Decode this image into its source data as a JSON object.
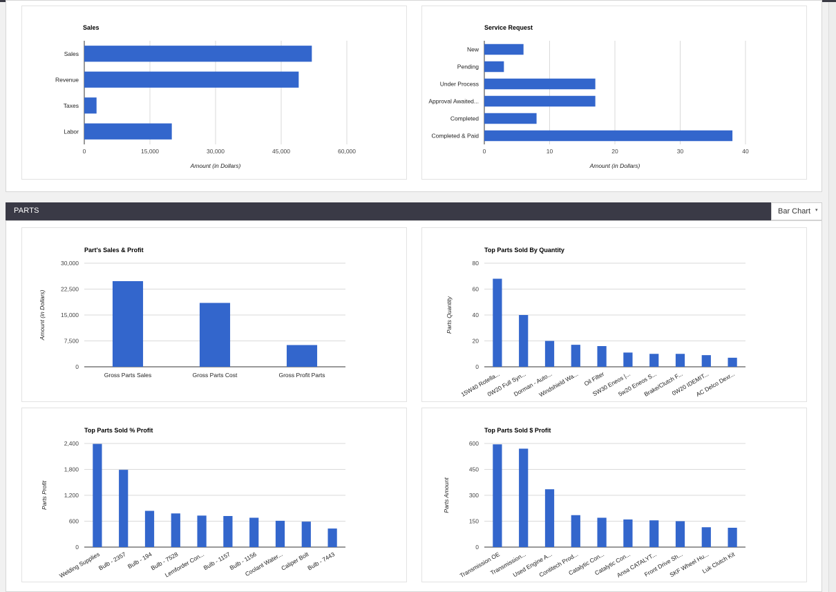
{
  "header": {
    "title": "PARTS",
    "view_select": "Bar Chart",
    "caret_icon": "▾"
  },
  "chart_data": [
    {
      "id": "sales",
      "type": "bar",
      "orientation": "horizontal",
      "title": "Sales",
      "categories": [
        "Sales",
        "Revenue",
        "Taxes",
        "Labor"
      ],
      "values": [
        52000,
        49000,
        2800,
        20000
      ],
      "xlabel": "Amount (in Dollars)",
      "ylabel": "",
      "ticks": [
        0,
        15000,
        30000,
        45000,
        60000
      ],
      "tick_labels": [
        "0",
        "15,000",
        "30,000",
        "45,000",
        "60,000"
      ],
      "xlim": [
        0,
        60000
      ],
      "grid": true,
      "color": "#3366cc"
    },
    {
      "id": "service-request",
      "type": "bar",
      "orientation": "horizontal",
      "title": "Service Request",
      "categories": [
        "New",
        "Pending",
        "Under Process",
        "Approval Awaited...",
        "Completed",
        "Completed & Paid"
      ],
      "values": [
        6,
        3,
        17,
        17,
        8,
        38
      ],
      "xlabel": "Amount (in Dollars)",
      "ylabel": "",
      "ticks": [
        0,
        10,
        20,
        30,
        40
      ],
      "tick_labels": [
        "0",
        "10",
        "20",
        "30",
        "40"
      ],
      "xlim": [
        0,
        40
      ],
      "grid": true,
      "color": "#3366cc"
    },
    {
      "id": "parts-sales-profit",
      "type": "bar",
      "title": "Part's Sales & Profit",
      "categories": [
        "Gross Parts Sales",
        "Gross Parts Cost",
        "Gross Profit Parts"
      ],
      "values": [
        24800,
        18500,
        6300
      ],
      "xlabel": "",
      "ylabel": "Amount (in Dollars)",
      "ticks": [
        0,
        7500,
        15000,
        22500,
        30000
      ],
      "tick_labels": [
        "0",
        "7,500",
        "15,000",
        "22,500",
        "30,000"
      ],
      "ylim": [
        0,
        30000
      ],
      "grid": true,
      "color": "#3366cc"
    },
    {
      "id": "top-parts-quantity",
      "type": "bar",
      "title": "Top Parts Sold By Quantity",
      "categories": [
        "15W40 Rotella...",
        "0W20 Full Syn...",
        "Dorman - Auto...",
        "Windshield Wa...",
        "Oil Filter",
        "SW30 Eneos |...",
        "5w20 Eneos S...",
        "Brake/Clutch F...",
        "0W20 IDEMIT...",
        "AC Delco Dexr..."
      ],
      "values": [
        68,
        40,
        20,
        17,
        16,
        11,
        10,
        10,
        9,
        7
      ],
      "xlabel": "",
      "ylabel": "Parts Quantity",
      "ticks": [
        0,
        20,
        40,
        60,
        80
      ],
      "tick_labels": [
        "0",
        "20",
        "40",
        "60",
        "80"
      ],
      "ylim": [
        0,
        80
      ],
      "grid": true,
      "color": "#3366cc"
    },
    {
      "id": "top-parts-pct-profit",
      "type": "bar",
      "title": "Top Parts Sold % Profit",
      "categories": [
        "Welding Supplies",
        "Bulb - 2357",
        "Bulb - 194",
        "Bulb - 7528",
        "Lemforder Con...",
        "Bulb - 1157",
        "Bulb - 1156",
        "Coolant Water...",
        "Caliper Bolt",
        "Bulb - 7443"
      ],
      "values": [
        2390,
        1790,
        840,
        780,
        730,
        720,
        680,
        610,
        590,
        430
      ],
      "xlabel": "",
      "ylabel": "Parts Profit",
      "ticks": [
        0,
        600,
        1200,
        1800,
        2400
      ],
      "tick_labels": [
        "0",
        "600",
        "1,200",
        "1,800",
        "2,400"
      ],
      "ylim": [
        0,
        2400
      ],
      "grid": true,
      "color": "#3366cc"
    },
    {
      "id": "top-parts-dollar-profit",
      "type": "bar",
      "title": "Top Parts Sold $ Profit",
      "categories": [
        "Transmission OE",
        "Transmission...",
        "Used Engine A...",
        "Contitech Prod...",
        "Catalytic Con...",
        "Catalytic Con...",
        "Ansa CATALYT...",
        "Front Drive Sh...",
        "SKF Wheel Hu...",
        "Luk Clutch Kit"
      ],
      "values": [
        595,
        570,
        335,
        185,
        170,
        160,
        155,
        150,
        115,
        112
      ],
      "xlabel": "",
      "ylabel": "Parts Amount",
      "ticks": [
        0,
        150,
        300,
        450,
        600
      ],
      "tick_labels": [
        "0",
        "150",
        "300",
        "450",
        "600"
      ],
      "ylim": [
        0,
        600
      ],
      "grid": true,
      "color": "#3366cc"
    }
  ]
}
